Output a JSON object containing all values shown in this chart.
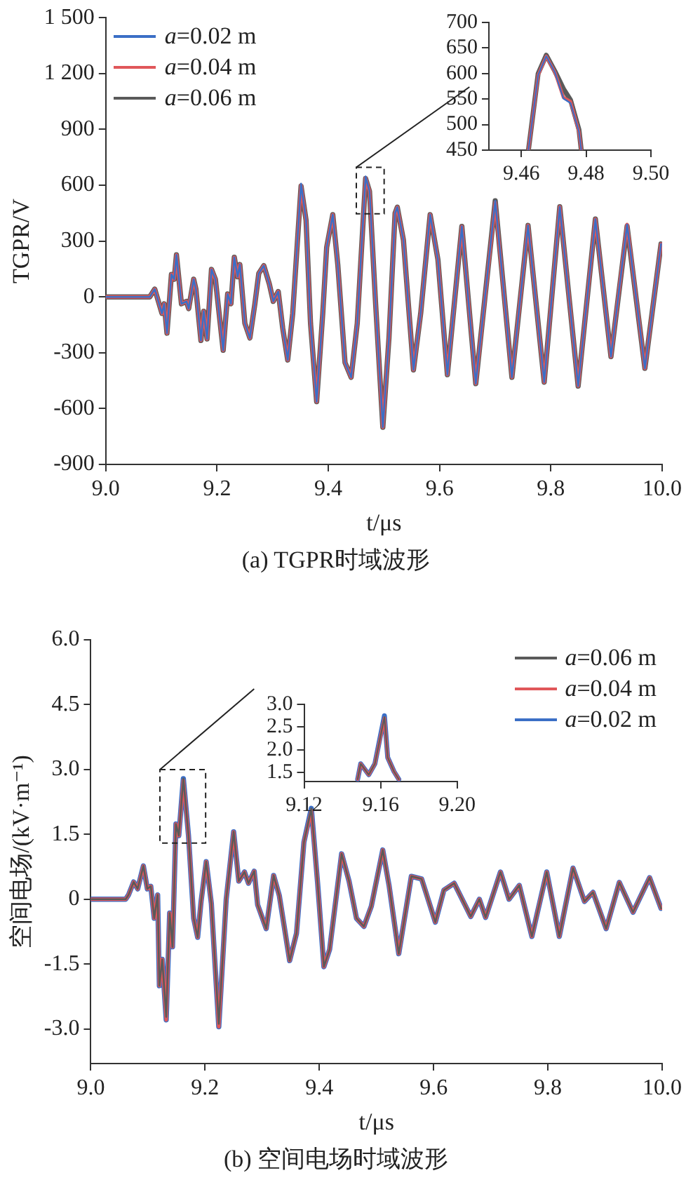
{
  "chart_data": [
    {
      "type": "line",
      "title": "(a) TGPR时域波形",
      "xlabel": "t/μs",
      "ylabel": "TGPR/V",
      "xlim": [
        9,
        10
      ],
      "xticks": [
        {
          "value": 9,
          "label": "9.0"
        },
        9.2,
        9.4,
        9.6,
        9.8,
        {
          "value": 10,
          "label": "10.0"
        }
      ],
      "ylim": [
        -900,
        1500
      ],
      "yticks": [
        {
          "value": 1500,
          "label": "1 500"
        },
        {
          "value": 1200,
          "label": "1 200"
        },
        900,
        600,
        300,
        0,
        -300,
        -600,
        -900
      ],
      "legend": "top left",
      "x": [
        9.0,
        9.079,
        9.088,
        9.101,
        9.105,
        9.11,
        9.118,
        9.123,
        9.127,
        9.136,
        9.145,
        9.149,
        9.158,
        9.162,
        9.171,
        9.176,
        9.182,
        9.19,
        9.197,
        9.211,
        9.219,
        9.225,
        9.231,
        9.237,
        9.241,
        9.25,
        9.259,
        9.268,
        9.275,
        9.284,
        9.294,
        9.301,
        9.31,
        9.318,
        9.327,
        9.336,
        9.351,
        9.36,
        9.368,
        9.379,
        9.39,
        9.397,
        9.408,
        9.417,
        9.43,
        9.441,
        9.452,
        9.467,
        9.474,
        9.485,
        9.498,
        9.509,
        9.52,
        9.524,
        9.535,
        9.553,
        9.566,
        9.583,
        9.597,
        9.614,
        9.64,
        9.665,
        9.7,
        9.73,
        9.759,
        9.788,
        9.816,
        9.849,
        9.88,
        9.908,
        9.937,
        9.969,
        9.998
      ],
      "series": [
        {
          "name": "a=0.02 m",
          "color": "#3b6fc6",
          "values": [
            0,
            0,
            42,
            -89,
            -37,
            -195,
            121,
            95,
            226,
            -37,
            -24,
            -63,
            95,
            42,
            -234,
            -77,
            -226,
            148,
            95,
            -287,
            16,
            -37,
            213,
            108,
            174,
            -142,
            -221,
            -37,
            126,
            168,
            69,
            -24,
            29,
            -168,
            -339,
            -89,
            608,
            411,
            -142,
            -563,
            -89,
            266,
            442,
            174,
            -353,
            -432,
            -142,
            647,
            568,
            -37,
            -700,
            -221,
            450,
            482,
            305,
            -392,
            -89,
            442,
            200,
            -418,
            379,
            -466,
            516,
            -432,
            384,
            -458,
            484,
            -479,
            418,
            -321,
            389,
            -384,
            284
          ]
        },
        {
          "name": "a=0.04 m",
          "color": "#e0575a",
          "values": [
            0,
            0,
            42,
            -89,
            -37,
            -195,
            121,
            95,
            226,
            -37,
            -24,
            -63,
            95,
            42,
            -234,
            -77,
            -226,
            148,
            95,
            -287,
            16,
            -37,
            213,
            108,
            174,
            -142,
            -221,
            -37,
            126,
            168,
            69,
            -24,
            29,
            -168,
            -339,
            -89,
            600,
            411,
            -142,
            -563,
            -89,
            266,
            442,
            174,
            -353,
            -432,
            -142,
            640,
            568,
            -37,
            -700,
            -221,
            450,
            482,
            305,
            -392,
            -89,
            442,
            200,
            -418,
            379,
            -466,
            508,
            -432,
            384,
            -458,
            484,
            -479,
            418,
            -321,
            389,
            -384,
            284
          ]
        },
        {
          "name": "a=0.06 m",
          "color": "#5a5a5a",
          "values": [
            0,
            0,
            42,
            -89,
            -37,
            -195,
            121,
            95,
            226,
            -37,
            -24,
            -63,
            95,
            42,
            -234,
            -77,
            -226,
            148,
            95,
            -287,
            16,
            -37,
            213,
            108,
            174,
            -142,
            -221,
            -37,
            126,
            168,
            69,
            -24,
            29,
            -168,
            -339,
            -89,
            595,
            411,
            -142,
            -563,
            -89,
            266,
            442,
            174,
            -353,
            -432,
            -142,
            636,
            568,
            -37,
            -700,
            -221,
            450,
            482,
            305,
            -392,
            -89,
            442,
            200,
            -418,
            379,
            -466,
            516,
            -432,
            384,
            -458,
            484,
            -479,
            418,
            -321,
            380,
            -384,
            284
          ]
        }
      ]
    },
    {
      "type": "line",
      "xlim": [
        9.45,
        9.5
      ],
      "xticks": [
        9.46,
        9.48,
        {
          "value": 9.5,
          "label": "9.50"
        }
      ],
      "ylim": [
        450,
        700
      ],
      "yticks": [
        450,
        500,
        550,
        600,
        650,
        700
      ],
      "x": [
        9.4622,
        9.4652,
        9.4677,
        9.4704,
        9.473,
        9.4752,
        9.4778,
        9.4785
      ],
      "series": [
        {
          "color": "#3b6fc6",
          "values": [
            450,
            597,
            634,
            602,
            551,
            542,
            486,
            450
          ]
        },
        {
          "color": "#e0575a",
          "values": [
            450,
            597,
            634,
            602,
            553,
            545,
            486,
            450
          ]
        },
        {
          "color": "#5a5a5a",
          "values": [
            450,
            600,
            636,
            604,
            570,
            548,
            490,
            450
          ]
        }
      ]
    },
    {
      "type": "line",
      "title": "(b) 空间电场时域波形",
      "xlabel": "t/μs",
      "ylabel": "空间电场/(kV·m⁻¹)",
      "xlim": [
        9,
        10
      ],
      "xticks": [
        {
          "value": 9,
          "label": "9.0"
        },
        9.2,
        9.4,
        9.6,
        9.8,
        {
          "value": 10,
          "label": "10.0"
        }
      ],
      "ylim": [
        -3.8,
        6
      ],
      "yticks": [
        {
          "value": 6,
          "label": "6.0"
        },
        4.5,
        {
          "value": 3,
          "label": "3.0"
        },
        1.5,
        0,
        -1.5,
        {
          "value": -3,
          "label": "-3.0"
        }
      ],
      "legend": "top right",
      "x": [
        9.0,
        9.061,
        9.066,
        9.075,
        9.082,
        9.092,
        9.099,
        9.105,
        9.111,
        9.117,
        9.12,
        9.125,
        9.132,
        9.138,
        9.143,
        9.149,
        9.154,
        9.162,
        9.171,
        9.18,
        9.187,
        9.193,
        9.202,
        9.211,
        9.224,
        9.237,
        9.25,
        9.259,
        9.269,
        9.276,
        9.286,
        9.292,
        9.307,
        9.32,
        9.33,
        9.348,
        9.36,
        9.373,
        9.386,
        9.397,
        9.408,
        9.418,
        9.439,
        9.452,
        9.465,
        9.478,
        9.491,
        9.511,
        9.522,
        9.539,
        9.561,
        9.579,
        9.603,
        9.618,
        9.636,
        9.665,
        9.68,
        9.691,
        9.717,
        9.732,
        9.75,
        9.772,
        9.798,
        9.82,
        9.844,
        9.864,
        9.879,
        9.902,
        9.925,
        9.949,
        9.978,
        9.998
      ],
      "series": [
        {
          "name": "a=0.06 m",
          "color": "#5a5a5a",
          "values": [
            0,
            0,
            0.1,
            0.4,
            0.24,
            0.77,
            0.24,
            0.3,
            -0.44,
            0.1,
            -2.0,
            -1.39,
            -2.72,
            -0.32,
            -1.1,
            1.74,
            1.47,
            2.79,
            1.47,
            -0.44,
            -0.88,
            -0.05,
            0.87,
            -0.1,
            -2.88,
            0,
            1.56,
            0.42,
            0.63,
            0.37,
            0.65,
            -0.13,
            -0.68,
            0.55,
            0.08,
            -1.42,
            -0.79,
            1.32,
            2.1,
            0.37,
            -1.56,
            -1.16,
            1.05,
            0.42,
            -0.44,
            -0.63,
            -0.16,
            1.14,
            0.32,
            -1.26,
            0.53,
            0.47,
            -0.53,
            0.21,
            0.37,
            -0.4,
            0,
            -0.42,
            0.63,
            0,
            0.32,
            -0.86,
            0.63,
            -0.86,
            0.72,
            -0.05,
            0.16,
            -0.68,
            0.39,
            -0.3,
            0.5,
            -0.21
          ]
        },
        {
          "name": "a=0.04 m",
          "color": "#e0575a",
          "values": [
            0,
            0,
            0.1,
            0.4,
            0.24,
            0.77,
            0.24,
            0.3,
            -0.44,
            0.1,
            -2.0,
            -1.39,
            -2.79,
            -0.32,
            -1.1,
            1.74,
            1.47,
            2.75,
            1.47,
            -0.44,
            -0.88,
            -0.05,
            0.87,
            -0.1,
            -2.95,
            0,
            1.56,
            0.42,
            0.63,
            0.37,
            0.65,
            -0.13,
            -0.68,
            0.55,
            0.08,
            -1.42,
            -0.79,
            1.32,
            2.05,
            0.37,
            -1.56,
            -1.16,
            1.05,
            0.42,
            -0.44,
            -0.63,
            -0.16,
            1.14,
            0.32,
            -1.26,
            0.53,
            0.47,
            -0.53,
            0.21,
            0.37,
            -0.4,
            0,
            -0.42,
            0.63,
            0,
            0.32,
            -0.86,
            0.63,
            -0.86,
            0.72,
            -0.05,
            0.16,
            -0.68,
            0.39,
            -0.3,
            0.5,
            -0.21
          ]
        },
        {
          "name": "a=0.02 m",
          "color": "#3b6fc6",
          "values": [
            0,
            0,
            0.1,
            0.4,
            0.24,
            0.77,
            0.24,
            0.3,
            -0.44,
            0.1,
            -2.0,
            -1.39,
            -2.79,
            -0.32,
            -1.1,
            1.74,
            1.47,
            2.79,
            1.47,
            -0.44,
            -0.88,
            -0.05,
            0.87,
            -0.1,
            -2.95,
            0,
            1.56,
            0.42,
            0.63,
            0.37,
            0.65,
            -0.13,
            -0.68,
            0.55,
            0.08,
            -1.42,
            -0.79,
            1.32,
            2.1,
            0.37,
            -1.56,
            -1.16,
            1.05,
            0.42,
            -0.44,
            -0.63,
            -0.16,
            1.14,
            0.32,
            -1.26,
            0.53,
            0.47,
            -0.53,
            0.21,
            0.37,
            -0.4,
            0,
            -0.42,
            0.63,
            0,
            0.32,
            -0.86,
            0.63,
            -0.86,
            0.72,
            -0.05,
            0.16,
            -0.68,
            0.39,
            -0.3,
            0.5,
            -0.21
          ]
        }
      ]
    },
    {
      "type": "line",
      "xlim": [
        9.12,
        9.2
      ],
      "xticks": [
        9.12,
        9.16,
        {
          "value": 9.2,
          "label": "9.20"
        }
      ],
      "ylim": [
        1.3,
        3
      ],
      "yticks": [
        1.5,
        {
          "value": 2,
          "label": "2.0"
        },
        2.5,
        {
          "value": 3,
          "label": "3.0"
        }
      ],
      "x": [
        9.148,
        9.1496,
        9.1538,
        9.157,
        9.162,
        9.1637,
        9.167,
        9.1695
      ],
      "series": [
        {
          "color": "#5a5a5a",
          "values": [
            1.35,
            1.69,
            1.45,
            1.69,
            2.72,
            1.83,
            1.52,
            1.35
          ]
        },
        {
          "color": "#e0575a",
          "values": [
            1.35,
            1.69,
            1.45,
            1.69,
            2.7,
            1.83,
            1.52,
            1.35
          ]
        },
        {
          "color": "#3b6fc6",
          "values": [
            1.35,
            1.69,
            1.45,
            1.69,
            2.75,
            1.83,
            1.52,
            1.35
          ]
        }
      ]
    }
  ]
}
